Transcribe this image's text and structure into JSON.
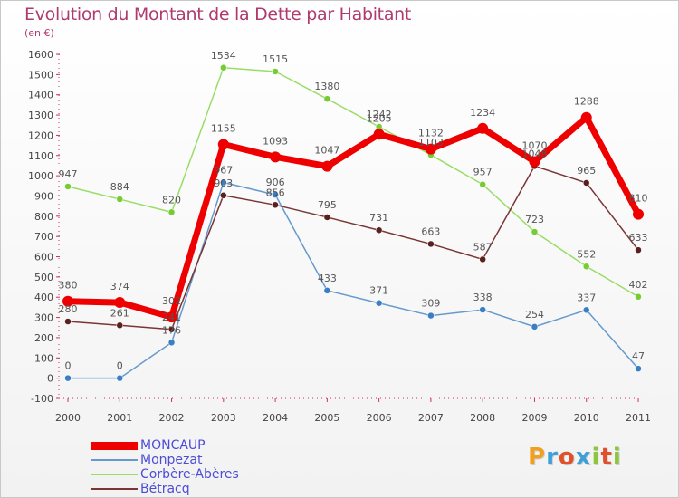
{
  "title": "Evolution du Montant de la Dette par Habitant",
  "subtitle": "(en €)",
  "brand": {
    "text": "Proxiti",
    "letters": [
      {
        "ch": "P",
        "color": "#f0a020"
      },
      {
        "ch": "r",
        "color": "#3da0d8"
      },
      {
        "ch": "o",
        "color": "#e0502a"
      },
      {
        "ch": "x",
        "color": "#3da0d8"
      },
      {
        "ch": "i",
        "color": "#8cc63f"
      },
      {
        "ch": "t",
        "color": "#e0502a"
      },
      {
        "ch": "i",
        "color": "#8cc63f"
      }
    ]
  },
  "chart_data": {
    "type": "line",
    "title": "Evolution du Montant de la Dette par Habitant",
    "subtitle": "(en €)",
    "x": [
      "2000",
      "2001",
      "2002",
      "2003",
      "2004",
      "2005",
      "2006",
      "2007",
      "2008",
      "2009",
      "2010",
      "2011"
    ],
    "ylim": [
      -100,
      1600
    ],
    "yticks": [
      -100,
      0,
      100,
      200,
      300,
      400,
      500,
      600,
      700,
      800,
      900,
      1000,
      1100,
      1200,
      1300,
      1400,
      1500,
      1600
    ],
    "grid": false,
    "legend_position": "bottom-left",
    "series": [
      {
        "name": "MONCAUP",
        "color": "#ee0000",
        "width": 7,
        "marker": 6,
        "values": [
          380,
          374,
          302,
          1155,
          1093,
          1047,
          1205,
          1132,
          1234,
          1070,
          1288,
          810
        ],
        "labels": [
          "380",
          "374",
          "302",
          "1155",
          "1093",
          "1047",
          "1205",
          "1132",
          "1234",
          "1070",
          "1288",
          "810"
        ]
      },
      {
        "name": "Monpezat",
        "color": "#6699cc",
        "width": 1.5,
        "marker": 3.5,
        "markerColor": "#3a7fc4",
        "values": [
          0,
          0,
          176,
          967,
          906,
          433,
          371,
          309,
          338,
          254,
          337,
          47
        ],
        "labels": [
          "0",
          "0",
          "176",
          "967",
          "906",
          "433",
          "371",
          "309",
          "338",
          "254",
          "337",
          "47"
        ]
      },
      {
        "name": "Corbère-Abères",
        "color": "#99dd66",
        "width": 1.5,
        "marker": 3.5,
        "markerColor": "#77cc33",
        "values": [
          947,
          884,
          820,
          1534,
          1515,
          1380,
          1242,
          1103,
          957,
          723,
          552,
          402
        ],
        "labels": [
          "947",
          "884",
          "820",
          "1534",
          "1515",
          "1380",
          "1242",
          "1103",
          "957",
          "723",
          "552",
          "402"
        ]
      },
      {
        "name": "Bétracq",
        "color": "#7a3535",
        "width": 1.5,
        "marker": 3.5,
        "markerColor": "#5a2020",
        "values": [
          280,
          261,
          241,
          903,
          856,
          795,
          731,
          663,
          587,
          1048,
          965,
          633
        ],
        "labels": [
          "280",
          "261",
          "241",
          "903",
          "856",
          "795",
          "731",
          "663",
          "587",
          "1048",
          "965",
          "633"
        ]
      }
    ]
  }
}
